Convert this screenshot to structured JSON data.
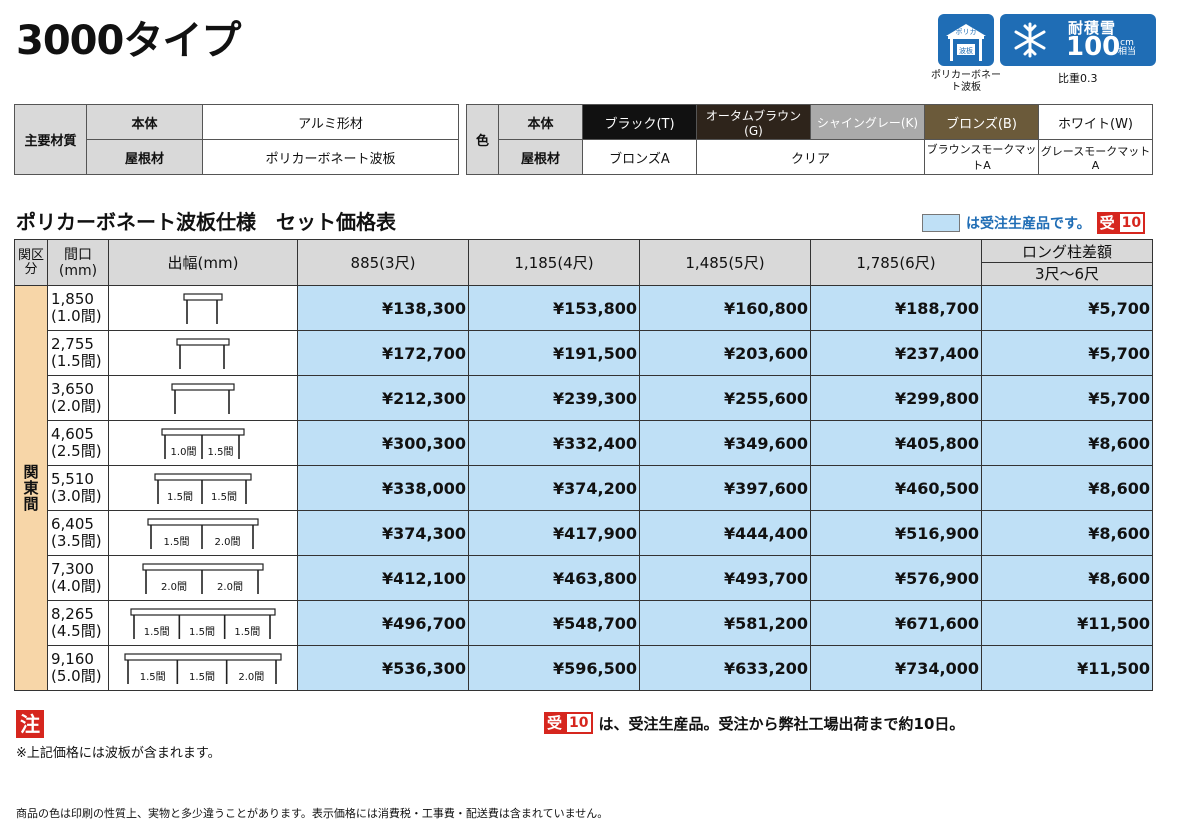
{
  "title": "3000タイプ",
  "badges": {
    "roof_top": "ポリカ",
    "roof_inner": "波板",
    "roof_caption": "ポリカーボネート波板",
    "snow_label": "耐積雪",
    "snow_value": "100",
    "snow_unit_top": "cm",
    "snow_unit_bottom": "相当",
    "snow_caption": "比重0.3"
  },
  "spec": {
    "main_label": "主要材質",
    "body_label": "本体",
    "body_value": "アルミ形材",
    "roof_label": "屋根材",
    "roof_value": "ポリカーボネート波板"
  },
  "colors": {
    "label": "色",
    "body_label": "本体",
    "roof_label": "屋根材",
    "body": [
      {
        "name": "ブラック(T)",
        "bg": "#111111",
        "fg": "#ffffff"
      },
      {
        "name": "オータムブラウン(G)",
        "bg": "#2e241b",
        "fg": "#ffffff"
      },
      {
        "name": "シャイングレー(K)",
        "bg": "#aaaaaa",
        "fg": "#ffffff"
      },
      {
        "name": "ブロンズ(B)",
        "bg": "#6b5a3a",
        "fg": "#ffffff"
      },
      {
        "name": "ホワイト(W)",
        "bg": "#ffffff",
        "fg": "#111111"
      }
    ],
    "roof": [
      "ブロンズA",
      "クリア",
      "ブラウンスモークマットA",
      "グレースモークマットA"
    ]
  },
  "subtitle": "ポリカーボネート波板仕様　セット価格表",
  "legend": {
    "text": "は受注生産品です。",
    "tag_a": "受",
    "tag_b": "10",
    "color": "#bfe0f6"
  },
  "table": {
    "headers": {
      "region": "関区分",
      "width": "間口(mm)",
      "depth": "出幅(mm)",
      "cols": [
        "885(3尺)",
        "1,185(4尺)",
        "1,485(5尺)",
        "1,785(6尺)"
      ],
      "long_title": "ロング柱差額",
      "long_sub": "3尺〜6尺"
    },
    "region": "関東間",
    "rows": [
      {
        "w1": "1,850",
        "w2": "(1.0間)",
        "diag": [],
        "prices": [
          "¥138,300",
          "¥153,800",
          "¥160,800",
          "¥188,700"
        ],
        "long": "¥5,700"
      },
      {
        "w1": "2,755",
        "w2": "(1.5間)",
        "diag": [],
        "prices": [
          "¥172,700",
          "¥191,500",
          "¥203,600",
          "¥237,400"
        ],
        "long": "¥5,700"
      },
      {
        "w1": "3,650",
        "w2": "(2.0間)",
        "diag": [],
        "prices": [
          "¥212,300",
          "¥239,300",
          "¥255,600",
          "¥299,800"
        ],
        "long": "¥5,700"
      },
      {
        "w1": "4,605",
        "w2": "(2.5間)",
        "diag": [
          "1.0間",
          "1.5間"
        ],
        "prices": [
          "¥300,300",
          "¥332,400",
          "¥349,600",
          "¥405,800"
        ],
        "long": "¥8,600"
      },
      {
        "w1": "5,510",
        "w2": "(3.0間)",
        "diag": [
          "1.5間",
          "1.5間"
        ],
        "prices": [
          "¥338,000",
          "¥374,200",
          "¥397,600",
          "¥460,500"
        ],
        "long": "¥8,600"
      },
      {
        "w1": "6,405",
        "w2": "(3.5間)",
        "diag": [
          "1.5間",
          "2.0間"
        ],
        "prices": [
          "¥374,300",
          "¥417,900",
          "¥444,400",
          "¥516,900"
        ],
        "long": "¥8,600"
      },
      {
        "w1": "7,300",
        "w2": "(4.0間)",
        "diag": [
          "2.0間",
          "2.0間"
        ],
        "prices": [
          "¥412,100",
          "¥463,800",
          "¥493,700",
          "¥576,900"
        ],
        "long": "¥8,600"
      },
      {
        "w1": "8,265",
        "w2": "(4.5間)",
        "diag": [
          "1.5間",
          "1.5間",
          "1.5間"
        ],
        "prices": [
          "¥496,700",
          "¥548,700",
          "¥581,200",
          "¥671,600"
        ],
        "long": "¥11,500"
      },
      {
        "w1": "9,160",
        "w2": "(5.0間)",
        "diag": [
          "1.5間",
          "1.5間",
          "2.0間"
        ],
        "prices": [
          "¥536,300",
          "¥596,500",
          "¥633,200",
          "¥734,000"
        ],
        "long": "¥11,500"
      }
    ]
  },
  "notes": {
    "mark": "注",
    "text": "※上記価格には波板が含まれます。",
    "right": "は、受注生産品。受注から弊社工場出荷まで約10日。"
  },
  "footer": "商品の色は印刷の性質上、実物と多少違うことがあります。表示価格には消費税・工事費・配送費は含まれていません。"
}
